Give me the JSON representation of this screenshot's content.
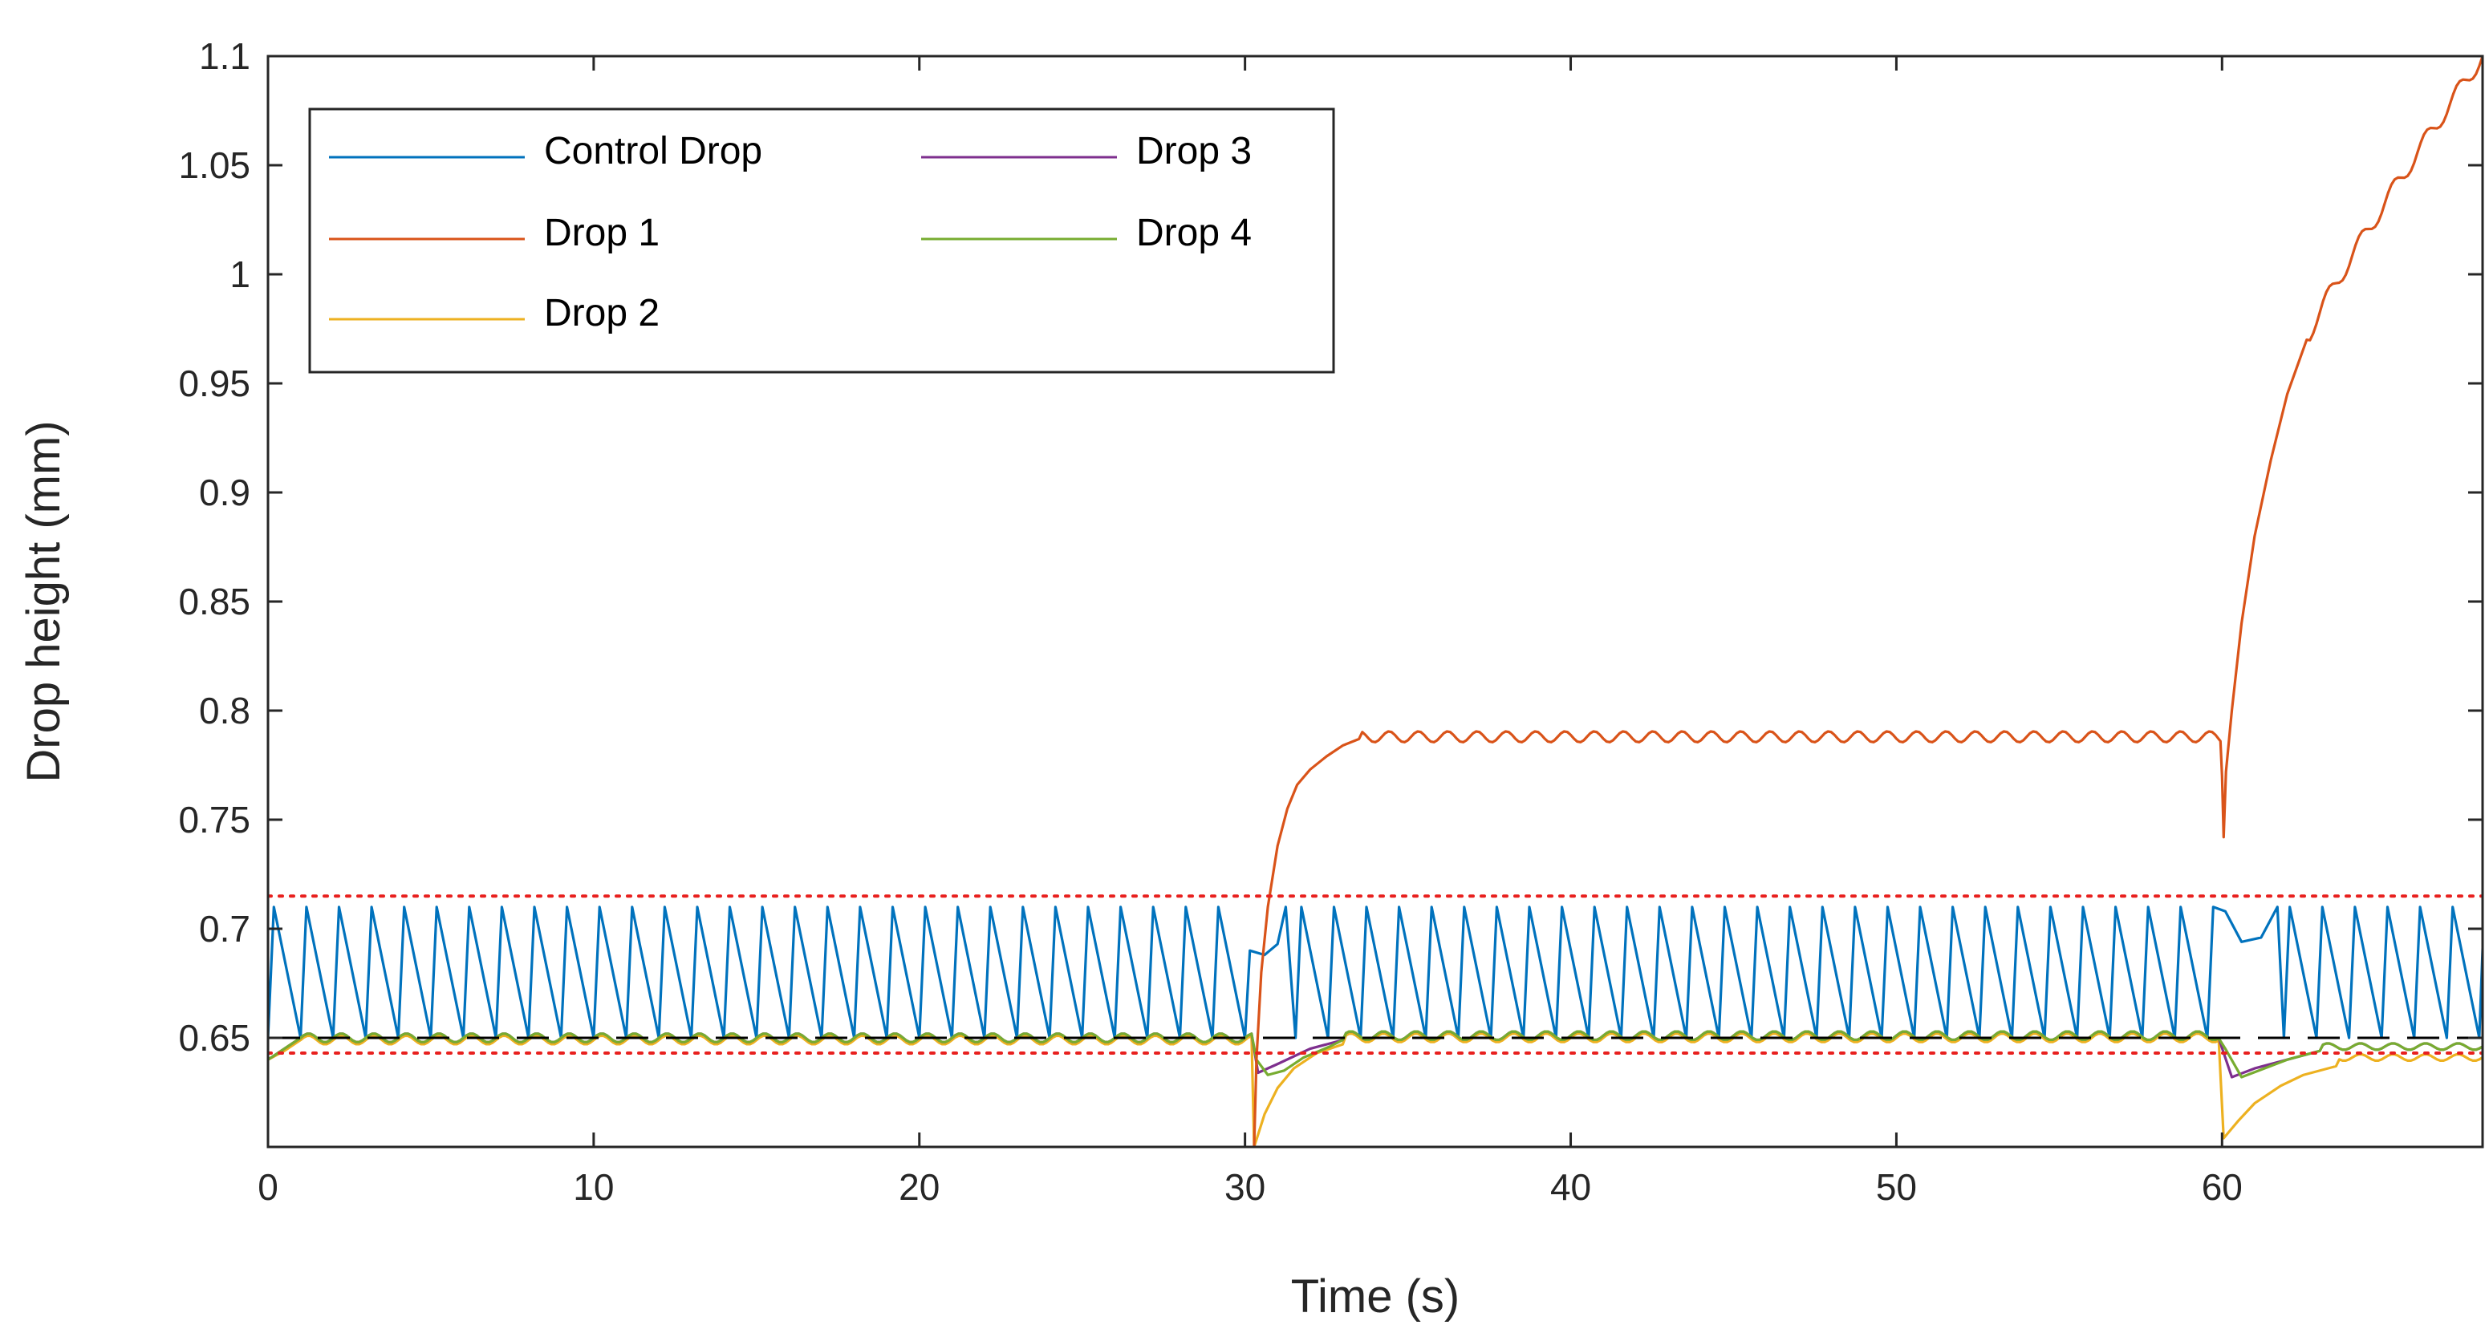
{
  "chart_data": {
    "type": "line",
    "xlabel": "Time (s)",
    "ylabel": "Drop height (mm)",
    "xlim": [
      0,
      68
    ],
    "ylim": [
      0.6,
      1.1
    ],
    "xticks": [
      0,
      10,
      20,
      30,
      40,
      50,
      60
    ],
    "yticks": [
      0.65,
      0.7,
      0.75,
      0.8,
      0.85,
      0.9,
      0.95,
      1,
      1.05,
      1.1
    ],
    "ytick_labels": [
      "0.65",
      "0.7",
      "0.75",
      "0.8",
      "0.85",
      "0.9",
      "0.95",
      "1",
      "1.05",
      "1.1"
    ],
    "grid": false,
    "legend_position": "top-left",
    "thresholds": {
      "upper_bound": 0.715,
      "target": 0.65,
      "lower_bound": 0.643,
      "bound_color": "#e8201e",
      "target_color": "#000000"
    },
    "series": [
      {
        "name": "Control Drop",
        "color": "#0072bd",
        "description": "sawtooth oscillating between about 0.65 and 0.71 with period about 1 s; shifted near 30 s and 60 s",
        "min": 0.65,
        "max": 0.71,
        "period": 1.0
      },
      {
        "name": "Drop 1",
        "color": "#d95319",
        "points": [
          [
            30.3,
            0.6
          ],
          [
            30.6,
            0.7
          ],
          [
            31.0,
            0.74
          ],
          [
            31.5,
            0.76
          ],
          [
            32.0,
            0.775
          ],
          [
            33.0,
            0.785
          ],
          [
            35.0,
            0.789
          ],
          [
            59.9,
            0.787
          ],
          [
            60.1,
            0.742
          ],
          [
            60.4,
            0.8
          ],
          [
            61.0,
            0.88
          ],
          [
            62.0,
            0.95
          ],
          [
            63.0,
            0.99
          ],
          [
            64.0,
            1.02
          ],
          [
            65.0,
            1.045
          ],
          [
            66.0,
            1.065
          ],
          [
            67.0,
            1.085
          ],
          [
            68.0,
            1.1
          ]
        ],
        "description": "rises from 0.6 at 30 s to about 0.79 plateau with small oscillations, dips at 60 s then rises to 1.1"
      },
      {
        "name": "Drop 2",
        "color": "#edb120",
        "points": [
          [
            0,
            0.64
          ],
          [
            1,
            0.645
          ],
          [
            30.2,
            0.652
          ],
          [
            30.3,
            0.6
          ],
          [
            31.0,
            0.625
          ],
          [
            32.0,
            0.64
          ],
          [
            33.0,
            0.647
          ],
          [
            59.9,
            0.652
          ],
          [
            60.2,
            0.603
          ],
          [
            61.0,
            0.62
          ],
          [
            63.0,
            0.635
          ],
          [
            68.0,
            0.642
          ]
        ],
        "description": "near 0.65 with small ripple, drops to 0.6 at 30 s and 60 s then recovers"
      },
      {
        "name": "Drop 3",
        "color": "#7e2f8e",
        "description": "hidden beneath Drop 4, tracks about 0.65"
      },
      {
        "name": "Drop 4",
        "color": "#77ac30",
        "points": [
          [
            0,
            0.64
          ],
          [
            1,
            0.647
          ],
          [
            30.2,
            0.653
          ],
          [
            30.5,
            0.635
          ],
          [
            31.5,
            0.643
          ],
          [
            33.0,
            0.649
          ],
          [
            59.9,
            0.653
          ],
          [
            60.3,
            0.632
          ],
          [
            61.5,
            0.64
          ],
          [
            63.0,
            0.644
          ],
          [
            68.0,
            0.647
          ]
        ],
        "description": "near 0.65 with small ripple, brief dips near 30 s and 60 s"
      }
    ]
  }
}
